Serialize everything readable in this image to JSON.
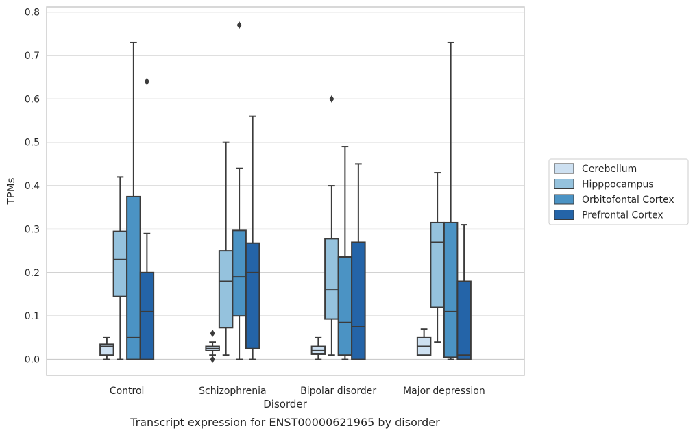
{
  "chart_data": {
    "type": "box",
    "caption": "Transcript expression for ENST00000621965 by disorder",
    "xlabel": "Disorder",
    "ylabel": "TPMs",
    "ylim": [
      -0.037,
      0.812
    ],
    "yticks": [
      "0.0",
      "0.1",
      "0.2",
      "0.3",
      "0.4",
      "0.5",
      "0.6",
      "0.7",
      "0.8"
    ],
    "grid": "horizontal",
    "legend_position": "right",
    "categories": [
      "Control",
      "Schizophrenia",
      "Bipolar disorder",
      "Major depression"
    ],
    "series": [
      {
        "name": "Cerebellum",
        "color": "#cde0f1",
        "boxes": [
          {
            "whisker_low": 0.0,
            "q1": 0.01,
            "median": 0.03,
            "q3": 0.035,
            "whisker_high": 0.05,
            "outliers": []
          },
          {
            "whisker_low": 0.01,
            "q1": 0.02,
            "median": 0.025,
            "q3": 0.03,
            "whisker_high": 0.04,
            "outliers": [
              0.0,
              0.06
            ]
          },
          {
            "whisker_low": 0.0,
            "q1": 0.012,
            "median": 0.02,
            "q3": 0.03,
            "whisker_high": 0.05,
            "outliers": []
          },
          {
            "whisker_low": 0.01,
            "q1": 0.01,
            "median": 0.03,
            "q3": 0.05,
            "whisker_high": 0.07,
            "outliers": []
          }
        ]
      },
      {
        "name": "Hipppocampus",
        "color": "#95c2dd",
        "boxes": [
          {
            "whisker_low": 0.0,
            "q1": 0.145,
            "median": 0.23,
            "q3": 0.295,
            "whisker_high": 0.42,
            "outliers": []
          },
          {
            "whisker_low": 0.01,
            "q1": 0.073,
            "median": 0.18,
            "q3": 0.25,
            "whisker_high": 0.5,
            "outliers": []
          },
          {
            "whisker_low": 0.01,
            "q1": 0.093,
            "median": 0.16,
            "q3": 0.278,
            "whisker_high": 0.4,
            "outliers": [
              0.6
            ]
          },
          {
            "whisker_low": 0.04,
            "q1": 0.12,
            "median": 0.27,
            "q3": 0.315,
            "whisker_high": 0.43,
            "outliers": []
          }
        ]
      },
      {
        "name": "Orbitofontal Cortex",
        "color": "#4b93c4",
        "boxes": [
          {
            "whisker_low": 0.0,
            "q1": 0.0,
            "median": 0.05,
            "q3": 0.375,
            "whisker_high": 0.73,
            "outliers": []
          },
          {
            "whisker_low": 0.0,
            "q1": 0.1,
            "median": 0.19,
            "q3": 0.297,
            "whisker_high": 0.44,
            "outliers": [
              0.77
            ]
          },
          {
            "whisker_low": 0.0,
            "q1": 0.01,
            "median": 0.085,
            "q3": 0.236,
            "whisker_high": 0.49,
            "outliers": []
          },
          {
            "whisker_low": 0.0,
            "q1": 0.005,
            "median": 0.11,
            "q3": 0.315,
            "whisker_high": 0.73,
            "outliers": []
          }
        ]
      },
      {
        "name": "Prefrontal Cortex",
        "color": "#2464a8",
        "boxes": [
          {
            "whisker_low": 0.0,
            "q1": 0.0,
            "median": 0.11,
            "q3": 0.2,
            "whisker_high": 0.29,
            "outliers": [
              0.64
            ]
          },
          {
            "whisker_low": 0.0,
            "q1": 0.025,
            "median": 0.2,
            "q3": 0.268,
            "whisker_high": 0.56,
            "outliers": []
          },
          {
            "whisker_low": 0.0,
            "q1": 0.0,
            "median": 0.075,
            "q3": 0.27,
            "whisker_high": 0.45,
            "outliers": []
          },
          {
            "whisker_low": 0.0,
            "q1": 0.0,
            "median": 0.01,
            "q3": 0.18,
            "whisker_high": 0.31,
            "outliers": []
          }
        ]
      }
    ]
  }
}
